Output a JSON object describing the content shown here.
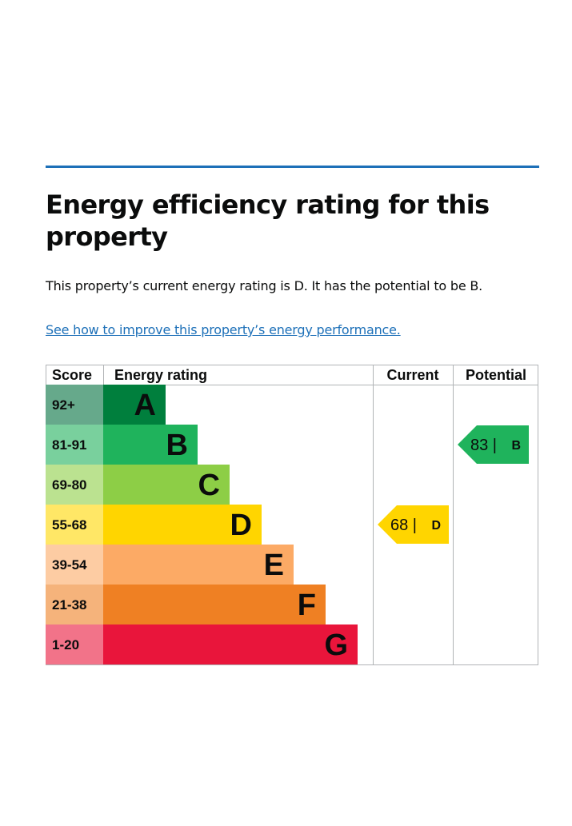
{
  "heading": "Energy efficiency rating for this property",
  "summary": "This property’s current energy rating is D. It has the potential to be B.",
  "improve_link": "See how to improve this property’s energy performance.",
  "chart_data": {
    "type": "table",
    "columns": [
      "Score",
      "Energy rating",
      "Current",
      "Potential"
    ],
    "bands": [
      {
        "score": "92+",
        "letter": "A",
        "color": "#007f3d",
        "score_bg": "#66a98b"
      },
      {
        "score": "81-91",
        "letter": "B",
        "color": "#1fb35c",
        "score_bg": "#79d09d"
      },
      {
        "score": "69-80",
        "letter": "C",
        "color": "#8dce46",
        "score_bg": "#bbe290"
      },
      {
        "score": "55-68",
        "letter": "D",
        "color": "#ffd500",
        "score_bg": "#ffe766"
      },
      {
        "score": "39-54",
        "letter": "E",
        "color": "#fcaa65",
        "score_bg": "#fdcca3"
      },
      {
        "score": "21-38",
        "letter": "F",
        "color": "#ef8023",
        "score_bg": "#f5b37b"
      },
      {
        "score": "1-20",
        "letter": "G",
        "color": "#e9153b",
        "score_bg": "#f27389"
      }
    ],
    "current": {
      "value": 68,
      "letter": "D",
      "color": "#ffd500"
    },
    "potential": {
      "value": 83,
      "letter": "B",
      "color": "#1fb35c"
    }
  }
}
